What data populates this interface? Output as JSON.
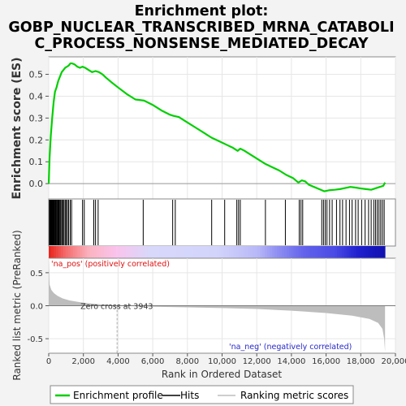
{
  "chart_data": {
    "type": "line",
    "title_lines": [
      "Enrichment plot:",
      "GOBP_NUCLEAR_TRANSCRIBED_MRNA_CATABOLI",
      "C_PROCESS_NONSENSE_MEDIATED_DECAY"
    ],
    "xlabel": "Rank in Ordered Dataset",
    "ylabel_top": "Enrichment score (ES)",
    "ylabel_bottom": "Ranked list metric (PreRanked)",
    "xlim": [
      0,
      20000
    ],
    "x_ticks": [
      "0",
      "2,000",
      "4,000",
      "6,000",
      "8,000",
      "10,000",
      "12,000",
      "14,000",
      "16,000",
      "18,000",
      "20,000"
    ],
    "x_tick_values": [
      0,
      2000,
      4000,
      6000,
      8000,
      10000,
      12000,
      14000,
      16000,
      18000,
      20000
    ],
    "es_ylim": [
      -0.07,
      0.58
    ],
    "es_y_ticks": [
      "0.0",
      "0.1",
      "0.2",
      "0.3",
      "0.4",
      "0.5"
    ],
    "es_y_tick_values": [
      0,
      0.1,
      0.2,
      0.3,
      0.4,
      0.5
    ],
    "metric_ylim": [
      -0.72,
      0.72
    ],
    "metric_y_ticks": [
      "0.5",
      "0.0",
      "-0.5"
    ],
    "metric_y_tick_values": [
      0.5,
      0,
      -0.5
    ],
    "zero_cross_label": "Zero cross at 3943",
    "zero_cross": 3943,
    "pos_label": "'na_pos' (positively correlated)",
    "neg_label": "'na_neg' (negatively correlated)",
    "total_genes": 19400,
    "enrichment_profile": [
      [
        0,
        0
      ],
      [
        50,
        0.12
      ],
      [
        120,
        0.22
      ],
      [
        200,
        0.3
      ],
      [
        280,
        0.37
      ],
      [
        360,
        0.42
      ],
      [
        450,
        0.44
      ],
      [
        550,
        0.47
      ],
      [
        650,
        0.49
      ],
      [
        750,
        0.51
      ],
      [
        850,
        0.52
      ],
      [
        950,
        0.53
      ],
      [
        1050,
        0.535
      ],
      [
        1150,
        0.54
      ],
      [
        1250,
        0.55
      ],
      [
        1350,
        0.55
      ],
      [
        1500,
        0.545
      ],
      [
        1650,
        0.535
      ],
      [
        1800,
        0.53
      ],
      [
        1950,
        0.535
      ],
      [
        2100,
        0.53
      ],
      [
        2300,
        0.52
      ],
      [
        2500,
        0.51
      ],
      [
        2700,
        0.515
      ],
      [
        2900,
        0.51
      ],
      [
        3100,
        0.5
      ],
      [
        3300,
        0.485
      ],
      [
        3600,
        0.465
      ],
      [
        4000,
        0.44
      ],
      [
        4500,
        0.41
      ],
      [
        5000,
        0.385
      ],
      [
        5500,
        0.38
      ],
      [
        6000,
        0.36
      ],
      [
        6500,
        0.335
      ],
      [
        7000,
        0.315
      ],
      [
        7200,
        0.31
      ],
      [
        7500,
        0.305
      ],
      [
        8000,
        0.28
      ],
      [
        8500,
        0.255
      ],
      [
        9000,
        0.23
      ],
      [
        9400,
        0.21
      ],
      [
        9800,
        0.195
      ],
      [
        10200,
        0.18
      ],
      [
        10600,
        0.165
      ],
      [
        10900,
        0.15
      ],
      [
        11050,
        0.16
      ],
      [
        11300,
        0.15
      ],
      [
        11700,
        0.13
      ],
      [
        12100,
        0.11
      ],
      [
        12500,
        0.09
      ],
      [
        12900,
        0.075
      ],
      [
        13300,
        0.06
      ],
      [
        13700,
        0.04
      ],
      [
        14100,
        0.025
      ],
      [
        14400,
        0.005
      ],
      [
        14600,
        0.015
      ],
      [
        14800,
        0.01
      ],
      [
        15000,
        -0.005
      ],
      [
        15300,
        -0.015
      ],
      [
        15600,
        -0.025
      ],
      [
        15900,
        -0.035
      ],
      [
        16200,
        -0.03
      ],
      [
        16500,
        -0.028
      ],
      [
        16800,
        -0.025
      ],
      [
        17100,
        -0.02
      ],
      [
        17400,
        -0.015
      ],
      [
        17700,
        -0.018
      ],
      [
        18000,
        -0.022
      ],
      [
        18300,
        -0.025
      ],
      [
        18600,
        -0.028
      ],
      [
        18900,
        -0.02
      ],
      [
        19100,
        -0.015
      ],
      [
        19300,
        -0.01
      ],
      [
        19400,
        0.005
      ]
    ],
    "hits": [
      40,
      70,
      90,
      110,
      130,
      150,
      170,
      200,
      230,
      260,
      290,
      310,
      340,
      380,
      420,
      470,
      520,
      560,
      600,
      650,
      700,
      760,
      820,
      880,
      950,
      1010,
      1080,
      1150,
      1240,
      1320,
      1950,
      2050,
      2600,
      2700,
      2850,
      5450,
      7150,
      7300,
      9400,
      10150,
      10850,
      10950,
      11050,
      12500,
      13650,
      14450,
      14550,
      14650,
      15750,
      15850,
      15950,
      16050,
      16200,
      16350,
      16600,
      16800,
      16950,
      17150,
      17350,
      17500,
      17700,
      17850,
      18050,
      18250,
      18450,
      18600,
      18750,
      18850,
      18950,
      19050,
      19150,
      19250,
      19350
    ],
    "metric_profile": [
      [
        0,
        0.72
      ],
      [
        50,
        0.32
      ],
      [
        150,
        0.24
      ],
      [
        300,
        0.19
      ],
      [
        500,
        0.15
      ],
      [
        800,
        0.11
      ],
      [
        1200,
        0.08
      ],
      [
        2000,
        0.045
      ],
      [
        3000,
        0.02
      ],
      [
        3943,
        0
      ],
      [
        6000,
        -0.015
      ],
      [
        8000,
        -0.025
      ],
      [
        10000,
        -0.035
      ],
      [
        12000,
        -0.05
      ],
      [
        14000,
        -0.075
      ],
      [
        16000,
        -0.11
      ],
      [
        17500,
        -0.15
      ],
      [
        18500,
        -0.2
      ],
      [
        19000,
        -0.26
      ],
      [
        19250,
        -0.35
      ],
      [
        19350,
        -0.5
      ],
      [
        19400,
        -0.7
      ]
    ],
    "heat_colors": [
      [
        0,
        "#e8221a"
      ],
      [
        0.05,
        "#f46b6b"
      ],
      [
        0.12,
        "#fbb3bf"
      ],
      [
        0.2,
        "#fac3ec"
      ],
      [
        0.3,
        "#d8d8fb"
      ],
      [
        0.5,
        "#d3d4fb"
      ],
      [
        0.62,
        "#b8b8f8"
      ],
      [
        0.68,
        "#8f8ff2"
      ],
      [
        0.76,
        "#6262ec"
      ],
      [
        0.85,
        "#4b4be6"
      ],
      [
        0.92,
        "#2020cf"
      ],
      [
        1,
        "#1010b0"
      ]
    ],
    "colors": {
      "profile": "#00d000",
      "hits": "#000000",
      "metric_fill": "#bdbdbd",
      "pos_label": "#e01010",
      "neg_label": "#2828c8",
      "zero_line": "#808080"
    },
    "legend": [
      {
        "label": "Enrichment profile",
        "color": "#00d000",
        "kind": "line"
      },
      {
        "label": "Hits",
        "color": "#000000",
        "kind": "line"
      },
      {
        "label": "Ranking metric scores",
        "color": "#bdbdbd",
        "kind": "line"
      }
    ]
  }
}
